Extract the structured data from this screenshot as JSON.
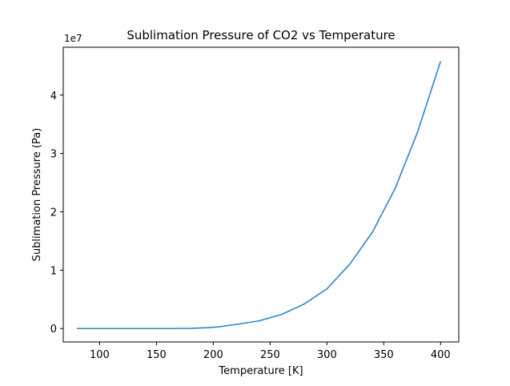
{
  "chart_data": {
    "type": "line",
    "title": "Sublimation Pressure of CO2 vs Temperature",
    "xlabel": "Temperature [K]",
    "ylabel": "Sublimation Pressure (Pa)",
    "y_offset_label": "1e7",
    "xlim": [
      68,
      416
    ],
    "ylim": [
      -0.23,
      4.82
    ],
    "y_scale_factor": 10000000,
    "x_ticks": [
      100,
      150,
      200,
      250,
      300,
      350,
      400
    ],
    "x_tick_labels": [
      "100",
      "150",
      "200",
      "250",
      "300",
      "350",
      "400"
    ],
    "y_ticks": [
      0,
      1,
      2,
      3,
      4
    ],
    "y_tick_labels": [
      "0",
      "1",
      "2",
      "3",
      "4"
    ],
    "grid": false,
    "legend": "none",
    "series": [
      {
        "color": "#2e86c1",
        "x": [
          80,
          100,
          120,
          140,
          160,
          180,
          195,
          205,
          220,
          240,
          260,
          280,
          300,
          320,
          340,
          360,
          380,
          400
        ],
        "y": [
          0.0,
          0.0,
          0.0,
          0.0,
          0.0,
          0.002,
          0.015,
          0.03,
          0.07,
          0.13,
          0.24,
          0.42,
          0.68,
          1.1,
          1.65,
          2.4,
          3.38,
          4.58
        ]
      }
    ]
  }
}
